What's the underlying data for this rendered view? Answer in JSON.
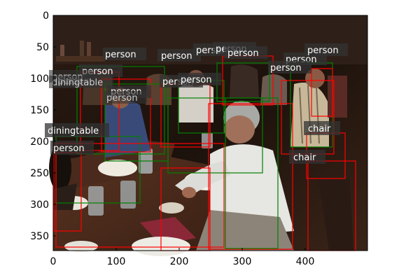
{
  "figure": {
    "x_ticks": [
      "0",
      "100",
      "200",
      "300",
      "400"
    ],
    "y_ticks": [
      "0",
      "50",
      "100",
      "150",
      "200",
      "250",
      "300",
      "350"
    ]
  },
  "detections": [
    {
      "label": "person",
      "color": "#ff0000"
    },
    {
      "label": "person",
      "color": "#ff0000"
    },
    {
      "label": "person",
      "color": "#008000"
    },
    {
      "label": "person",
      "color": "#ff0000"
    },
    {
      "label": "person",
      "color": "#008000"
    },
    {
      "label": "person",
      "color": "#ff0000"
    },
    {
      "label": "person",
      "color": "#008000"
    },
    {
      "label": "person",
      "color": "#ff0000"
    },
    {
      "label": "person",
      "color": "#008000"
    },
    {
      "label": "person",
      "color": "#ff0000"
    },
    {
      "label": "person",
      "color": "#008000"
    },
    {
      "label": "person",
      "color": "#ff0000"
    },
    {
      "label": "person",
      "color": "#008000"
    },
    {
      "label": "person",
      "color": "#008000"
    },
    {
      "label": "person",
      "color": "#ff0000"
    },
    {
      "label": "diningtable",
      "color": "#008000"
    },
    {
      "label": "diningtable",
      "color": "#ff0000"
    },
    {
      "label": "person",
      "color": "#ff0000"
    },
    {
      "label": "chair",
      "color": "#ff0000"
    },
    {
      "label": "chair",
      "color": "#ff0000"
    }
  ]
}
